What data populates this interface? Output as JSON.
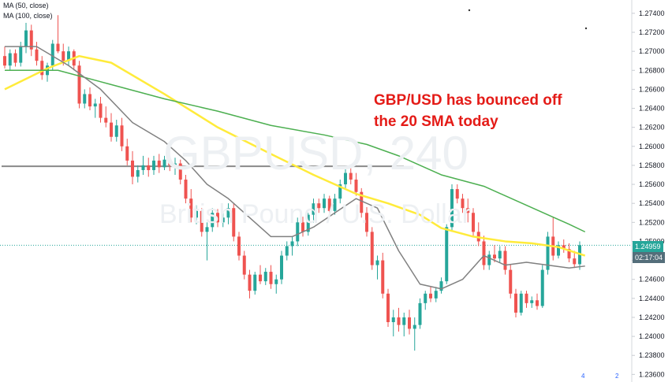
{
  "indicators": [
    "MA (50, close)",
    "MA (100, close)"
  ],
  "watermark": {
    "symbol": "GBPUSD, 240",
    "description": "British Pound / U.S. Dollar"
  },
  "annotation": [
    "GBP/USD has bounced off",
    "the 20 SMA today"
  ],
  "price_tag": {
    "price": "1.24959",
    "countdown": "02:17:04"
  },
  "badges": [
    "4",
    "2"
  ],
  "colors": {
    "up": "#26a69a",
    "down": "#ef5350",
    "ma20": "#808080",
    "ma50": "#ffeb3b",
    "ma100": "#4caf50",
    "support": "#8a8a8a",
    "price_tag": "#26a69a",
    "countdown_tag": "#546e7a",
    "annotation": "#e41b17"
  },
  "chart_data": {
    "type": "candlestick",
    "timeframe": "240",
    "y_ticks": [
      "1.27400",
      "1.27200",
      "1.27000",
      "1.26800",
      "1.26600",
      "1.26400",
      "1.26200",
      "1.26000",
      "1.25800",
      "1.25600",
      "1.25400",
      "1.25200",
      "1.25000",
      "1.24800",
      "1.24600",
      "1.24400",
      "1.24200",
      "1.24000",
      "1.23800",
      "1.23600"
    ],
    "ylim": [
      1.2352,
      1.2754
    ],
    "last_price": 1.24959,
    "support_level": 1.2579,
    "candles": [
      [
        1.2695,
        1.2705,
        1.2682,
        1.2685
      ],
      [
        1.2685,
        1.2702,
        1.268,
        1.2698
      ],
      [
        1.2698,
        1.2702,
        1.2684,
        1.2688
      ],
      [
        1.2688,
        1.271,
        1.2684,
        1.2705
      ],
      [
        1.2705,
        1.273,
        1.2698,
        1.2722
      ],
      [
        1.2722,
        1.2728,
        1.2695,
        1.2702
      ],
      [
        1.2702,
        1.271,
        1.2685,
        1.269
      ],
      [
        1.269,
        1.2695,
        1.267,
        1.2675
      ],
      [
        1.2675,
        1.2688,
        1.2668,
        1.2685
      ],
      [
        1.2685,
        1.2712,
        1.268,
        1.2708
      ],
      [
        1.2708,
        1.2738,
        1.2698,
        1.27
      ],
      [
        1.27,
        1.2708,
        1.2685,
        1.269
      ],
      [
        1.269,
        1.2705,
        1.2685,
        1.27
      ],
      [
        1.27,
        1.2702,
        1.268,
        1.2685
      ],
      [
        1.2685,
        1.269,
        1.264,
        1.2645
      ],
      [
        1.2645,
        1.266,
        1.264,
        1.2655
      ],
      [
        1.2655,
        1.2662,
        1.2638,
        1.2642
      ],
      [
        1.2642,
        1.265,
        1.263,
        1.2645
      ],
      [
        1.2645,
        1.2652,
        1.2625,
        1.263
      ],
      [
        1.263,
        1.2642,
        1.262,
        1.2625
      ],
      [
        1.2625,
        1.2635,
        1.2605,
        1.261
      ],
      [
        1.261,
        1.2628,
        1.2605,
        1.2622
      ],
      [
        1.2622,
        1.263,
        1.2595,
        1.26
      ],
      [
        1.26,
        1.2608,
        1.258,
        1.2585
      ],
      [
        1.2585,
        1.2595,
        1.256,
        1.2568
      ],
      [
        1.2568,
        1.258,
        1.2562,
        1.2575
      ],
      [
        1.2575,
        1.259,
        1.257,
        1.258
      ],
      [
        1.258,
        1.2588,
        1.2568,
        1.2575
      ],
      [
        1.2575,
        1.259,
        1.257,
        1.2585
      ],
      [
        1.2585,
        1.2592,
        1.2572,
        1.2578
      ],
      [
        1.2578,
        1.259,
        1.2575,
        1.2586
      ],
      [
        1.2586,
        1.259,
        1.2574,
        1.258
      ],
      [
        1.258,
        1.2588,
        1.257,
        1.2582
      ],
      [
        1.2582,
        1.2586,
        1.256,
        1.2565
      ],
      [
        1.2565,
        1.257,
        1.254,
        1.2545
      ],
      [
        1.2545,
        1.2555,
        1.252,
        1.2525
      ],
      [
        1.2525,
        1.2538,
        1.2518,
        1.2532
      ],
      [
        1.2532,
        1.2535,
        1.2505,
        1.251
      ],
      [
        1.251,
        1.252,
        1.248,
        1.2515
      ],
      [
        1.2515,
        1.2535,
        1.251,
        1.253
      ],
      [
        1.253,
        1.2534,
        1.2515,
        1.252
      ],
      [
        1.252,
        1.253,
        1.2515,
        1.2525
      ],
      [
        1.2525,
        1.254,
        1.2518,
        1.2535
      ],
      [
        1.2535,
        1.254,
        1.25,
        1.2505
      ],
      [
        1.2505,
        1.251,
        1.248,
        1.2485
      ],
      [
        1.2485,
        1.249,
        1.246,
        1.2465
      ],
      [
        1.2465,
        1.247,
        1.244,
        1.2448
      ],
      [
        1.2448,
        1.2468,
        1.2444,
        1.2465
      ],
      [
        1.2465,
        1.2475,
        1.2455,
        1.2458
      ],
      [
        1.2458,
        1.2472,
        1.2454,
        1.2468
      ],
      [
        1.2468,
        1.2475,
        1.245,
        1.2455
      ],
      [
        1.2455,
        1.2465,
        1.2445,
        1.246
      ],
      [
        1.246,
        1.249,
        1.2455,
        1.2485
      ],
      [
        1.2485,
        1.25,
        1.248,
        1.2495
      ],
      [
        1.2495,
        1.2505,
        1.2485,
        1.25
      ],
      [
        1.25,
        1.2525,
        1.2495,
        1.252
      ],
      [
        1.252,
        1.2526,
        1.2505,
        1.251
      ],
      [
        1.251,
        1.253,
        1.2506,
        1.2528
      ],
      [
        1.2528,
        1.2545,
        1.252,
        1.254
      ],
      [
        1.254,
        1.2545,
        1.253,
        1.2535
      ],
      [
        1.2535,
        1.255,
        1.253,
        1.2545
      ],
      [
        1.2545,
        1.2548,
        1.2528,
        1.2532
      ],
      [
        1.2532,
        1.255,
        1.2528,
        1.2545
      ],
      [
        1.2545,
        1.2565,
        1.254,
        1.256
      ],
      [
        1.256,
        1.2578,
        1.2555,
        1.2572
      ],
      [
        1.2572,
        1.2578,
        1.256,
        1.2565
      ],
      [
        1.2565,
        1.2572,
        1.2548,
        1.2552
      ],
      [
        1.2552,
        1.2556,
        1.2525,
        1.253
      ],
      [
        1.253,
        1.2536,
        1.2505,
        1.251
      ],
      [
        1.251,
        1.2515,
        1.247,
        1.2475
      ],
      [
        1.2475,
        1.2485,
        1.246,
        1.248
      ],
      [
        1.248,
        1.2488,
        1.244,
        1.2445
      ],
      [
        1.2445,
        1.245,
        1.241,
        1.2415
      ],
      [
        1.2415,
        1.2428,
        1.24,
        1.242
      ],
      [
        1.242,
        1.243,
        1.2405,
        1.2412
      ],
      [
        1.2412,
        1.2425,
        1.24,
        1.242
      ],
      [
        1.242,
        1.2428,
        1.2402,
        1.2408
      ],
      [
        1.2408,
        1.242,
        1.2385,
        1.2412
      ],
      [
        1.2412,
        1.244,
        1.2408,
        1.2435
      ],
      [
        1.2435,
        1.2448,
        1.2428,
        1.2445
      ],
      [
        1.2445,
        1.2452,
        1.2436,
        1.244
      ],
      [
        1.244,
        1.2452,
        1.2436,
        1.2448
      ],
      [
        1.2448,
        1.2462,
        1.2445,
        1.2458
      ],
      [
        1.2458,
        1.2518,
        1.2455,
        1.2515
      ],
      [
        1.2515,
        1.256,
        1.251,
        1.2555
      ],
      [
        1.2555,
        1.256,
        1.254,
        1.2545
      ],
      [
        1.2545,
        1.255,
        1.253,
        1.2535
      ],
      [
        1.2535,
        1.2545,
        1.252,
        1.253
      ],
      [
        1.253,
        1.2535,
        1.2505,
        1.251
      ],
      [
        1.251,
        1.252,
        1.2495,
        1.25
      ],
      [
        1.25,
        1.2506,
        1.247,
        1.2475
      ],
      [
        1.2475,
        1.249,
        1.247,
        1.2486
      ],
      [
        1.2486,
        1.2496,
        1.2478,
        1.2482
      ],
      [
        1.2482,
        1.2495,
        1.2478,
        1.249
      ],
      [
        1.249,
        1.2495,
        1.2465,
        1.247
      ],
      [
        1.247,
        1.2476,
        1.244,
        1.2445
      ],
      [
        1.2445,
        1.245,
        1.242,
        1.2425
      ],
      [
        1.2425,
        1.2448,
        1.2422,
        1.2445
      ],
      [
        1.2445,
        1.2448,
        1.243,
        1.2435
      ],
      [
        1.2435,
        1.2442,
        1.243,
        1.2438
      ],
      [
        1.2438,
        1.2445,
        1.2428,
        1.2432
      ],
      [
        1.2432,
        1.2475,
        1.243,
        1.247
      ],
      [
        1.247,
        1.251,
        1.2465,
        1.2505
      ],
      [
        1.2505,
        1.2525,
        1.248,
        1.2485
      ],
      [
        1.2485,
        1.25,
        1.2482,
        1.2496
      ],
      [
        1.2496,
        1.2502,
        1.2488,
        1.2492
      ],
      [
        1.2492,
        1.2498,
        1.2478,
        1.2482
      ],
      [
        1.2482,
        1.249,
        1.2472,
        1.2476
      ],
      [
        1.2476,
        1.25,
        1.247,
        1.2496
      ]
    ],
    "series": [
      {
        "name": "MA (50, close)",
        "values": [
          [
            0,
            1.266
          ],
          [
            8,
            1.2682
          ],
          [
            14,
            1.2695
          ],
          [
            20,
            1.2688
          ],
          [
            30,
            1.2655
          ],
          [
            40,
            1.262
          ],
          [
            50,
            1.2592
          ],
          [
            58,
            1.257
          ],
          [
            66,
            1.255
          ],
          [
            72,
            1.254
          ],
          [
            78,
            1.2528
          ],
          [
            82,
            1.2514
          ],
          [
            88,
            1.2505
          ],
          [
            94,
            1.25
          ],
          [
            99,
            1.2498
          ],
          [
            104,
            1.2494
          ],
          [
            109,
            1.2485
          ]
        ]
      },
      {
        "name": "MA (100, close)",
        "values": [
          [
            0,
            1.268
          ],
          [
            10,
            1.268
          ],
          [
            20,
            1.2665
          ],
          [
            30,
            1.265
          ],
          [
            40,
            1.2637
          ],
          [
            50,
            1.2622
          ],
          [
            60,
            1.2612
          ],
          [
            68,
            1.2602
          ],
          [
            74,
            1.259
          ],
          [
            82,
            1.257
          ],
          [
            90,
            1.2558
          ],
          [
            96,
            1.2543
          ],
          [
            102,
            1.2528
          ],
          [
            106,
            1.2518
          ],
          [
            109,
            1.251
          ]
        ]
      },
      {
        "values": [
          [
            0,
            1.2705
          ],
          [
            6,
            1.2705
          ],
          [
            12,
            1.2685
          ],
          [
            18,
            1.266
          ],
          [
            24,
            1.2625
          ],
          [
            30,
            1.2605
          ],
          [
            34,
            1.2585
          ],
          [
            38,
            1.256
          ],
          [
            42,
            1.2545
          ],
          [
            46,
            1.2525
          ],
          [
            50,
            1.2505
          ],
          [
            54,
            1.2505
          ],
          [
            58,
            1.2515
          ],
          [
            62,
            1.253
          ],
          [
            66,
            1.2545
          ],
          [
            70,
            1.2535
          ],
          [
            74,
            1.249
          ],
          [
            78,
            1.2455
          ],
          [
            82,
            1.245
          ],
          [
            86,
            1.246
          ],
          [
            90,
            1.2485
          ],
          [
            94,
            1.2475
          ],
          [
            98,
            1.2478
          ],
          [
            102,
            1.2475
          ],
          [
            106,
            1.2472
          ],
          [
            109,
            1.2474
          ]
        ]
      }
    ]
  }
}
